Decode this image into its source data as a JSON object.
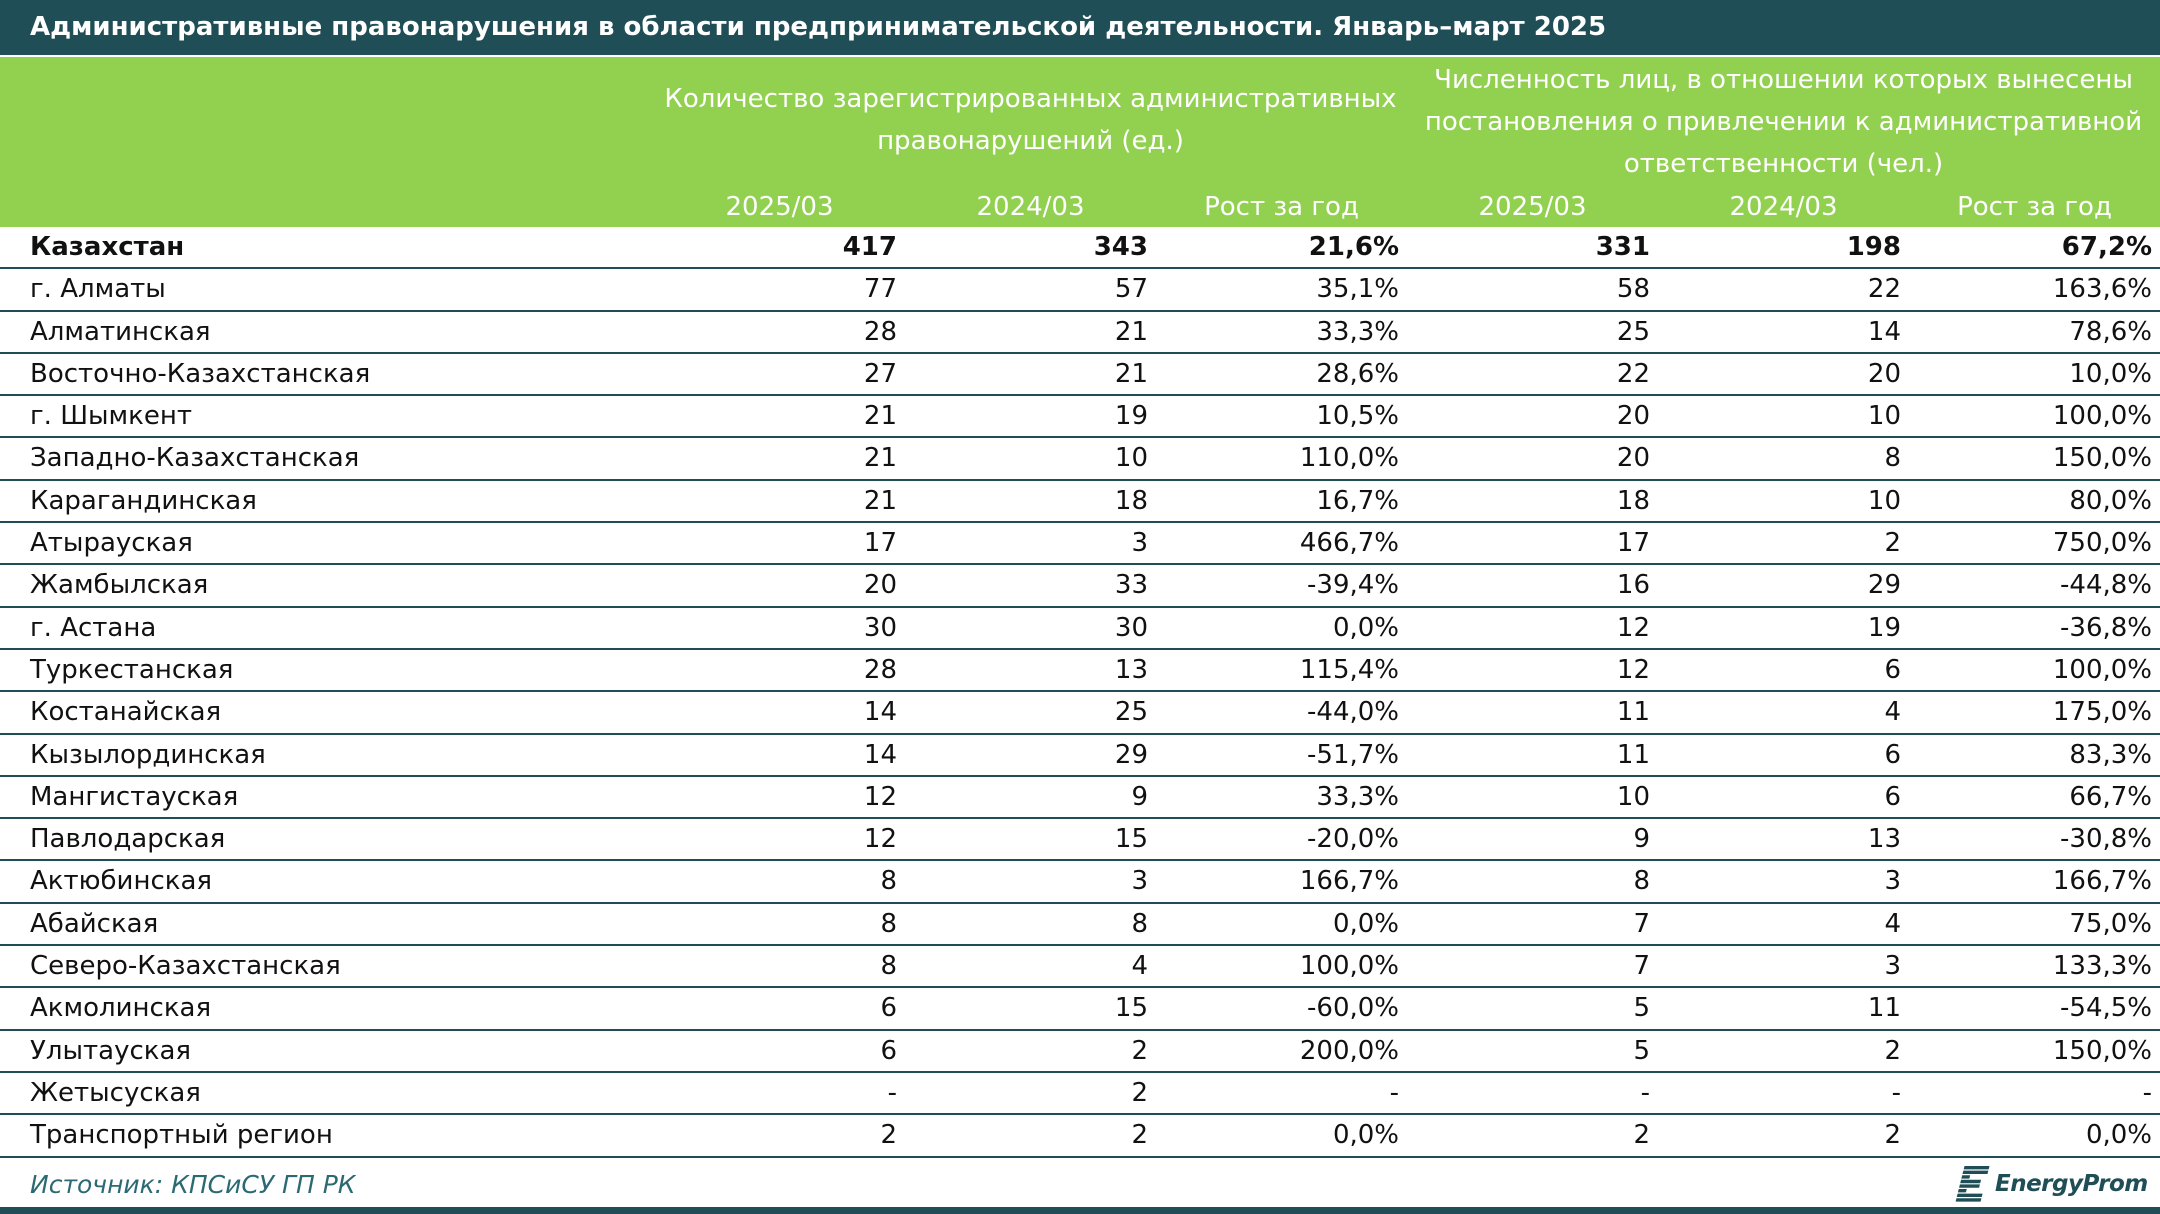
{
  "colors": {
    "title_bar": "#1f4e56",
    "header_bg": "#92d050",
    "header_text": "#ffffff",
    "row_rule": "#1f4e56",
    "source_text": "#2c6a73",
    "logo": "#1f4e56"
  },
  "chart_data": {
    "type": "table",
    "title": "Административные правонарушения в области предпринимательской деятельности. Январь–март 2025",
    "column_groups": [
      {
        "label_lines": [
          "Количество зарегистрированных административных",
          "правонарушений (ед.)"
        ]
      },
      {
        "label_lines": [
          "Численность лиц, в отношении которых вынесены",
          "постановления о привлечении к административной",
          "ответственности (чел.)"
        ]
      }
    ],
    "columns": [
      "2025/03",
      "2024/03",
      "Рост за год",
      "2025/03",
      "2024/03",
      "Рост за год"
    ],
    "rows": [
      {
        "region": "Казахстан",
        "total": true,
        "values": [
          "417",
          "343",
          "21,6%",
          "331",
          "198",
          "67,2%"
        ]
      },
      {
        "region": "г. Алматы",
        "values": [
          "77",
          "57",
          "35,1%",
          "58",
          "22",
          "163,6%"
        ]
      },
      {
        "region": "Алматинская",
        "values": [
          "28",
          "21",
          "33,3%",
          "25",
          "14",
          "78,6%"
        ]
      },
      {
        "region": "Восточно-Казахстанская",
        "values": [
          "27",
          "21",
          "28,6%",
          "22",
          "20",
          "10,0%"
        ]
      },
      {
        "region": "г. Шымкент",
        "values": [
          "21",
          "19",
          "10,5%",
          "20",
          "10",
          "100,0%"
        ]
      },
      {
        "region": "Западно-Казахстанская",
        "values": [
          "21",
          "10",
          "110,0%",
          "20",
          "8",
          "150,0%"
        ]
      },
      {
        "region": "Карагандинская",
        "values": [
          "21",
          "18",
          "16,7%",
          "18",
          "10",
          "80,0%"
        ]
      },
      {
        "region": "Атырауская",
        "values": [
          "17",
          "3",
          "466,7%",
          "17",
          "2",
          "750,0%"
        ]
      },
      {
        "region": "Жамбылская",
        "values": [
          "20",
          "33",
          "-39,4%",
          "16",
          "29",
          "-44,8%"
        ]
      },
      {
        "region": "г. Астана",
        "values": [
          "30",
          "30",
          "0,0%",
          "12",
          "19",
          "-36,8%"
        ]
      },
      {
        "region": "Туркестанская",
        "values": [
          "28",
          "13",
          "115,4%",
          "12",
          "6",
          "100,0%"
        ]
      },
      {
        "region": "Костанайская",
        "values": [
          "14",
          "25",
          "-44,0%",
          "11",
          "4",
          "175,0%"
        ]
      },
      {
        "region": "Кызылординская",
        "values": [
          "14",
          "29",
          "-51,7%",
          "11",
          "6",
          "83,3%"
        ]
      },
      {
        "region": "Мангистауская",
        "values": [
          "12",
          "9",
          "33,3%",
          "10",
          "6",
          "66,7%"
        ]
      },
      {
        "region": "Павлодарская",
        "values": [
          "12",
          "15",
          "-20,0%",
          "9",
          "13",
          "-30,8%"
        ]
      },
      {
        "region": "Актюбинская",
        "values": [
          "8",
          "3",
          "166,7%",
          "8",
          "3",
          "166,7%"
        ]
      },
      {
        "region": "Абайская",
        "values": [
          "8",
          "8",
          "0,0%",
          "7",
          "4",
          "75,0%"
        ]
      },
      {
        "region": "Северо-Казахстанская",
        "values": [
          "8",
          "4",
          "100,0%",
          "7",
          "3",
          "133,3%"
        ]
      },
      {
        "region": "Акмолинская",
        "values": [
          "6",
          "15",
          "-60,0%",
          "5",
          "11",
          "-54,5%"
        ]
      },
      {
        "region": "Улытауская",
        "values": [
          "6",
          "2",
          "200,0%",
          "5",
          "2",
          "150,0%"
        ]
      },
      {
        "region": "Жетысуская",
        "values": [
          "-",
          "2",
          "-",
          "-",
          "-",
          "-"
        ]
      },
      {
        "region": "Транспортный регион",
        "values": [
          "2",
          "2",
          "0,0%",
          "2",
          "2",
          "0,0%"
        ]
      }
    ]
  },
  "footer": {
    "source": "Источник: КПСиСУ ГП РК",
    "logo_text": "EnergyProm",
    "logo_icon": "energyprom-e-icon"
  }
}
